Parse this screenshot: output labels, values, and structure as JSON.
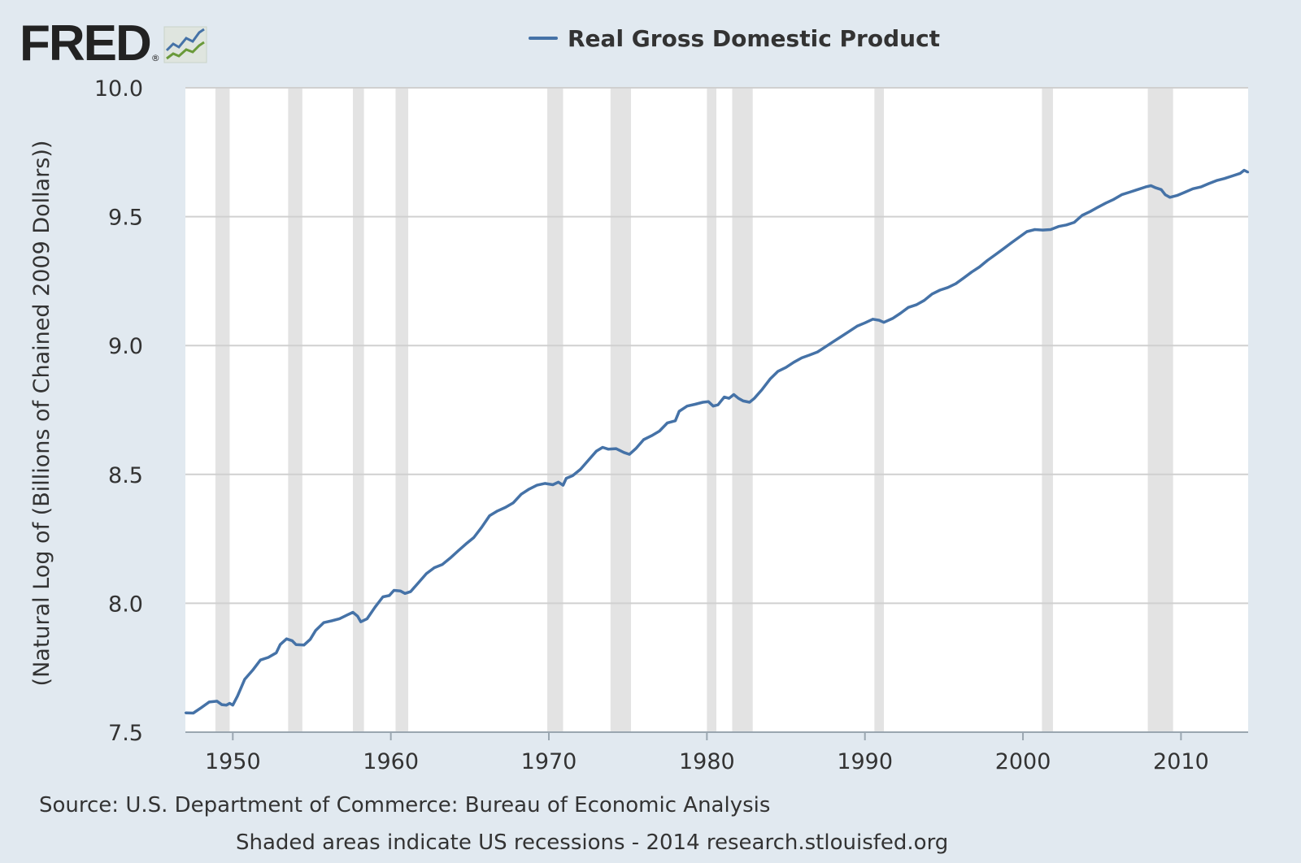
{
  "logo": {
    "text": "FRED",
    "reg": "®",
    "icon": "fred-chart-icon"
  },
  "legend": {
    "label": "Real Gross Domestic Product",
    "color": "#4572a7"
  },
  "footer": {
    "source": "Source: U.S. Department of Commerce: Bureau of Economic Analysis",
    "note": "Shaded areas indicate US recessions - 2014 research.stlouisfed.org"
  },
  "colors": {
    "background": "#e1e9f0",
    "plot": "#ffffff",
    "recession": "#e3e3e3",
    "grid": "#d0d0d0",
    "line": "#4572a7"
  },
  "chart_data": {
    "type": "line",
    "title": "",
    "ylabel": "(Natural Log of (Billions of Chained 2009 Dollars))",
    "xlabel": "",
    "xlim": [
      1947.0,
      2014.25
    ],
    "ylim": [
      7.5,
      10.0
    ],
    "grid": true,
    "legend_position": "top",
    "x_ticks": [
      1950,
      1960,
      1970,
      1980,
      1990,
      2000,
      2010
    ],
    "x_tick_labels": [
      "1950",
      "1960",
      "1970",
      "1980",
      "1990",
      "2000",
      "2010"
    ],
    "y_ticks": [
      7.5,
      8.0,
      8.5,
      9.0,
      9.5,
      10.0
    ],
    "y_tick_labels": [
      "7.5",
      "8.0",
      "8.5",
      "9.0",
      "9.5",
      "10.0"
    ],
    "recessions": [
      [
        1948.9,
        1949.8
      ],
      [
        1953.5,
        1954.4
      ],
      [
        1957.6,
        1958.3
      ],
      [
        1960.3,
        1961.1
      ],
      [
        1969.9,
        1970.9
      ],
      [
        1973.9,
        1975.2
      ],
      [
        1980.0,
        1980.6
      ],
      [
        1981.6,
        1982.9
      ],
      [
        1990.6,
        1991.2
      ],
      [
        2001.2,
        2001.9
      ],
      [
        2007.9,
        2009.5
      ]
    ],
    "series": [
      {
        "name": "Real Gross Domestic Product",
        "points": [
          [
            1947.0,
            7.575
          ],
          [
            1947.5,
            7.574
          ],
          [
            1948.0,
            7.595
          ],
          [
            1948.5,
            7.617
          ],
          [
            1949.0,
            7.62
          ],
          [
            1949.3,
            7.607
          ],
          [
            1949.6,
            7.605
          ],
          [
            1949.8,
            7.612
          ],
          [
            1950.0,
            7.605
          ],
          [
            1950.3,
            7.64
          ],
          [
            1950.75,
            7.705
          ],
          [
            1951.25,
            7.74
          ],
          [
            1951.75,
            7.78
          ],
          [
            1952.25,
            7.79
          ],
          [
            1952.75,
            7.808
          ],
          [
            1953.0,
            7.84
          ],
          [
            1953.4,
            7.862
          ],
          [
            1953.75,
            7.855
          ],
          [
            1954.0,
            7.84
          ],
          [
            1954.5,
            7.838
          ],
          [
            1954.9,
            7.86
          ],
          [
            1955.25,
            7.895
          ],
          [
            1955.75,
            7.925
          ],
          [
            1956.25,
            7.932
          ],
          [
            1956.75,
            7.94
          ],
          [
            1957.25,
            7.955
          ],
          [
            1957.6,
            7.965
          ],
          [
            1957.9,
            7.95
          ],
          [
            1958.1,
            7.928
          ],
          [
            1958.5,
            7.94
          ],
          [
            1959.0,
            7.985
          ],
          [
            1959.5,
            8.025
          ],
          [
            1959.9,
            8.03
          ],
          [
            1960.2,
            8.05
          ],
          [
            1960.6,
            8.048
          ],
          [
            1960.9,
            8.038
          ],
          [
            1961.25,
            8.045
          ],
          [
            1961.75,
            8.08
          ],
          [
            1962.25,
            8.115
          ],
          [
            1962.75,
            8.138
          ],
          [
            1963.25,
            8.15
          ],
          [
            1963.75,
            8.175
          ],
          [
            1964.25,
            8.203
          ],
          [
            1964.75,
            8.23
          ],
          [
            1965.25,
            8.255
          ],
          [
            1965.75,
            8.295
          ],
          [
            1966.25,
            8.34
          ],
          [
            1966.75,
            8.358
          ],
          [
            1967.25,
            8.372
          ],
          [
            1967.75,
            8.39
          ],
          [
            1968.25,
            8.423
          ],
          [
            1968.75,
            8.443
          ],
          [
            1969.25,
            8.458
          ],
          [
            1969.75,
            8.465
          ],
          [
            1970.25,
            8.46
          ],
          [
            1970.6,
            8.47
          ],
          [
            1970.9,
            8.458
          ],
          [
            1971.1,
            8.485
          ],
          [
            1971.5,
            8.495
          ],
          [
            1972.0,
            8.52
          ],
          [
            1972.5,
            8.555
          ],
          [
            1973.0,
            8.59
          ],
          [
            1973.4,
            8.605
          ],
          [
            1973.75,
            8.598
          ],
          [
            1974.25,
            8.6
          ],
          [
            1974.75,
            8.585
          ],
          [
            1975.1,
            8.578
          ],
          [
            1975.5,
            8.6
          ],
          [
            1976.0,
            8.635
          ],
          [
            1976.5,
            8.65
          ],
          [
            1977.0,
            8.668
          ],
          [
            1977.5,
            8.7
          ],
          [
            1978.0,
            8.708
          ],
          [
            1978.25,
            8.745
          ],
          [
            1978.75,
            8.765
          ],
          [
            1979.25,
            8.772
          ],
          [
            1979.75,
            8.78
          ],
          [
            1980.1,
            8.782
          ],
          [
            1980.4,
            8.765
          ],
          [
            1980.7,
            8.77
          ],
          [
            1981.1,
            8.8
          ],
          [
            1981.4,
            8.795
          ],
          [
            1981.7,
            8.81
          ],
          [
            1982.0,
            8.795
          ],
          [
            1982.3,
            8.785
          ],
          [
            1982.7,
            8.78
          ],
          [
            1983.0,
            8.795
          ],
          [
            1983.5,
            8.83
          ],
          [
            1984.0,
            8.87
          ],
          [
            1984.5,
            8.9
          ],
          [
            1985.0,
            8.915
          ],
          [
            1985.5,
            8.935
          ],
          [
            1986.0,
            8.952
          ],
          [
            1986.5,
            8.963
          ],
          [
            1987.0,
            8.975
          ],
          [
            1987.5,
            8.995
          ],
          [
            1988.0,
            9.015
          ],
          [
            1988.5,
            9.035
          ],
          [
            1989.0,
            9.055
          ],
          [
            1989.5,
            9.075
          ],
          [
            1990.0,
            9.088
          ],
          [
            1990.5,
            9.102
          ],
          [
            1990.9,
            9.098
          ],
          [
            1991.2,
            9.09
          ],
          [
            1991.75,
            9.105
          ],
          [
            1992.25,
            9.125
          ],
          [
            1992.75,
            9.148
          ],
          [
            1993.25,
            9.158
          ],
          [
            1993.75,
            9.175
          ],
          [
            1994.25,
            9.2
          ],
          [
            1994.75,
            9.215
          ],
          [
            1995.25,
            9.225
          ],
          [
            1995.75,
            9.24
          ],
          [
            1996.25,
            9.262
          ],
          [
            1996.75,
            9.285
          ],
          [
            1997.25,
            9.305
          ],
          [
            1997.75,
            9.33
          ],
          [
            1998.25,
            9.352
          ],
          [
            1998.75,
            9.375
          ],
          [
            1999.25,
            9.398
          ],
          [
            1999.75,
            9.42
          ],
          [
            2000.25,
            9.442
          ],
          [
            2000.75,
            9.45
          ],
          [
            2001.25,
            9.448
          ],
          [
            2001.75,
            9.45
          ],
          [
            2002.25,
            9.462
          ],
          [
            2002.75,
            9.468
          ],
          [
            2003.25,
            9.478
          ],
          [
            2003.75,
            9.505
          ],
          [
            2004.25,
            9.52
          ],
          [
            2004.75,
            9.537
          ],
          [
            2005.25,
            9.553
          ],
          [
            2005.75,
            9.567
          ],
          [
            2006.25,
            9.585
          ],
          [
            2006.75,
            9.595
          ],
          [
            2007.25,
            9.605
          ],
          [
            2007.75,
            9.615
          ],
          [
            2008.1,
            9.62
          ],
          [
            2008.4,
            9.612
          ],
          [
            2008.75,
            9.605
          ],
          [
            2009.0,
            9.585
          ],
          [
            2009.3,
            9.575
          ],
          [
            2009.75,
            9.582
          ],
          [
            2010.25,
            9.595
          ],
          [
            2010.75,
            9.608
          ],
          [
            2011.25,
            9.615
          ],
          [
            2011.75,
            9.628
          ],
          [
            2012.25,
            9.64
          ],
          [
            2012.75,
            9.648
          ],
          [
            2013.25,
            9.658
          ],
          [
            2013.75,
            9.668
          ],
          [
            2014.0,
            9.68
          ],
          [
            2014.25,
            9.672
          ]
        ]
      }
    ]
  }
}
